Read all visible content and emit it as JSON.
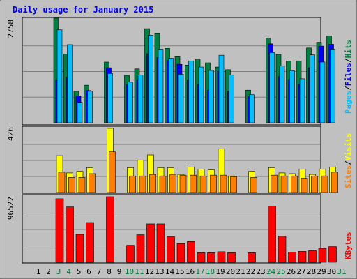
{
  "chart_data": [
    {
      "type": "bar",
      "title": "Daily usage for January 2015",
      "ylabel": "Pages / Files / Hits",
      "ymax_label": "2758",
      "ylim": [
        0,
        2758
      ],
      "categories": [
        "1",
        "2",
        "3",
        "4",
        "5",
        "6",
        "7",
        "8",
        "9",
        "10",
        "11",
        "12",
        "13",
        "14",
        "15",
        "16",
        "17",
        "18",
        "19",
        "20",
        "21",
        "22",
        "23",
        "24",
        "25",
        "26",
        "27",
        "28",
        "29",
        "30",
        "31"
      ],
      "series": [
        {
          "name": "Hits",
          "color": "#008040",
          "values": [
            0,
            0,
            2758,
            1810,
            830,
            990,
            0,
            1600,
            0,
            1250,
            1420,
            2480,
            2350,
            1960,
            1740,
            1520,
            1680,
            1580,
            1470,
            1400,
            0,
            860,
            0,
            2230,
            1800,
            1630,
            1630,
            1970,
            2120,
            2290,
            0
          ]
        },
        {
          "name": "Files",
          "color": "#0000FF",
          "values": [
            0,
            0,
            1130,
            1200,
            710,
            850,
            0,
            1450,
            0,
            1010,
            1130,
            1820,
            1720,
            1640,
            1540,
            1130,
            1010,
            860,
            1360,
            830,
            0,
            690,
            0,
            2080,
            1220,
            1140,
            1020,
            1450,
            2020,
            2070,
            0
          ]
        },
        {
          "name": "Pages",
          "color": "#00C0FF",
          "values": [
            0,
            0,
            2450,
            2060,
            540,
            830,
            0,
            1300,
            0,
            1070,
            1260,
            2310,
            1940,
            1700,
            1280,
            1630,
            1470,
            1380,
            1780,
            1260,
            0,
            740,
            0,
            1850,
            1500,
            1370,
            1160,
            1790,
            1600,
            1940,
            0
          ]
        }
      ]
    },
    {
      "type": "bar",
      "ylabel": "Sites / Visits",
      "ymax_label": "426",
      "ylim": [
        0,
        426
      ],
      "categories": [
        "1",
        "2",
        "3",
        "4",
        "5",
        "6",
        "7",
        "8",
        "9",
        "10",
        "11",
        "12",
        "13",
        "14",
        "15",
        "16",
        "17",
        "18",
        "19",
        "20",
        "21",
        "22",
        "23",
        "24",
        "25",
        "26",
        "27",
        "28",
        "29",
        "30",
        "31"
      ],
      "series": [
        {
          "name": "Visits",
          "color": "#FFFF00",
          "values": [
            0,
            0,
            245,
            130,
            140,
            165,
            0,
            426,
            0,
            165,
            215,
            250,
            165,
            165,
            120,
            170,
            155,
            150,
            290,
            110,
            0,
            140,
            0,
            165,
            130,
            125,
            155,
            120,
            155,
            170,
            0
          ]
        },
        {
          "name": "Sites",
          "color": "#FF8000",
          "values": [
            0,
            0,
            135,
            100,
            100,
            125,
            0,
            270,
            0,
            110,
            110,
            120,
            110,
            120,
            115,
            115,
            110,
            115,
            115,
            105,
            0,
            100,
            0,
            115,
            110,
            110,
            95,
            110,
            110,
            135,
            0
          ]
        }
      ]
    },
    {
      "type": "bar",
      "ylabel": "KBytes",
      "ymax_label": "96522",
      "ylim": [
        0,
        96522
      ],
      "categories": [
        "1",
        "2",
        "3",
        "4",
        "5",
        "6",
        "7",
        "8",
        "9",
        "10",
        "11",
        "12",
        "13",
        "14",
        "15",
        "16",
        "17",
        "18",
        "19",
        "20",
        "21",
        "22",
        "23",
        "24",
        "25",
        "26",
        "27",
        "28",
        "29",
        "30",
        "31"
      ],
      "series": [
        {
          "name": "KBytes",
          "color": "#FF0000",
          "values": [
            0,
            0,
            93500,
            81500,
            41000,
            58500,
            0,
            96522,
            0,
            25000,
            40500,
            56500,
            56500,
            37500,
            27500,
            30500,
            14000,
            14000,
            15500,
            14000,
            0,
            14000,
            0,
            82500,
            38500,
            15000,
            16000,
            17000,
            20500,
            23000,
            0
          ]
        }
      ]
    }
  ],
  "x_axis": {
    "labels": [
      "1",
      "2",
      "3",
      "4",
      "5",
      "6",
      "7",
      "8",
      "9",
      "10",
      "11",
      "12",
      "13",
      "14",
      "15",
      "16",
      "17",
      "18",
      "19",
      "20",
      "21",
      "22",
      "23",
      "24",
      "25",
      "26",
      "27",
      "28",
      "29",
      "30",
      "31"
    ],
    "weekend_days": [
      "3",
      "4",
      "10",
      "11",
      "17",
      "18",
      "24",
      "25",
      "31"
    ],
    "weekday_color": "#000000",
    "weekend_color": "#008040"
  },
  "legend": {
    "panel1": [
      {
        "text": "Pages",
        "color": "#00C0FF"
      },
      {
        "text": "/",
        "color": "#000000"
      },
      {
        "text": "Files",
        "color": "#0000FF"
      },
      {
        "text": "/",
        "color": "#000000"
      },
      {
        "text": "Hits",
        "color": "#008040"
      }
    ],
    "panel2": [
      {
        "text": "Sites",
        "color": "#FF8000"
      },
      {
        "text": "/",
        "color": "#000000"
      },
      {
        "text": "Visits",
        "color": "#FFFF00"
      }
    ],
    "panel3": [
      {
        "text": "KBytes",
        "color": "#FF0000"
      }
    ]
  },
  "colors": {
    "background": "#C0C0C0",
    "title": "#0000FF",
    "gridline": "#808080"
  }
}
